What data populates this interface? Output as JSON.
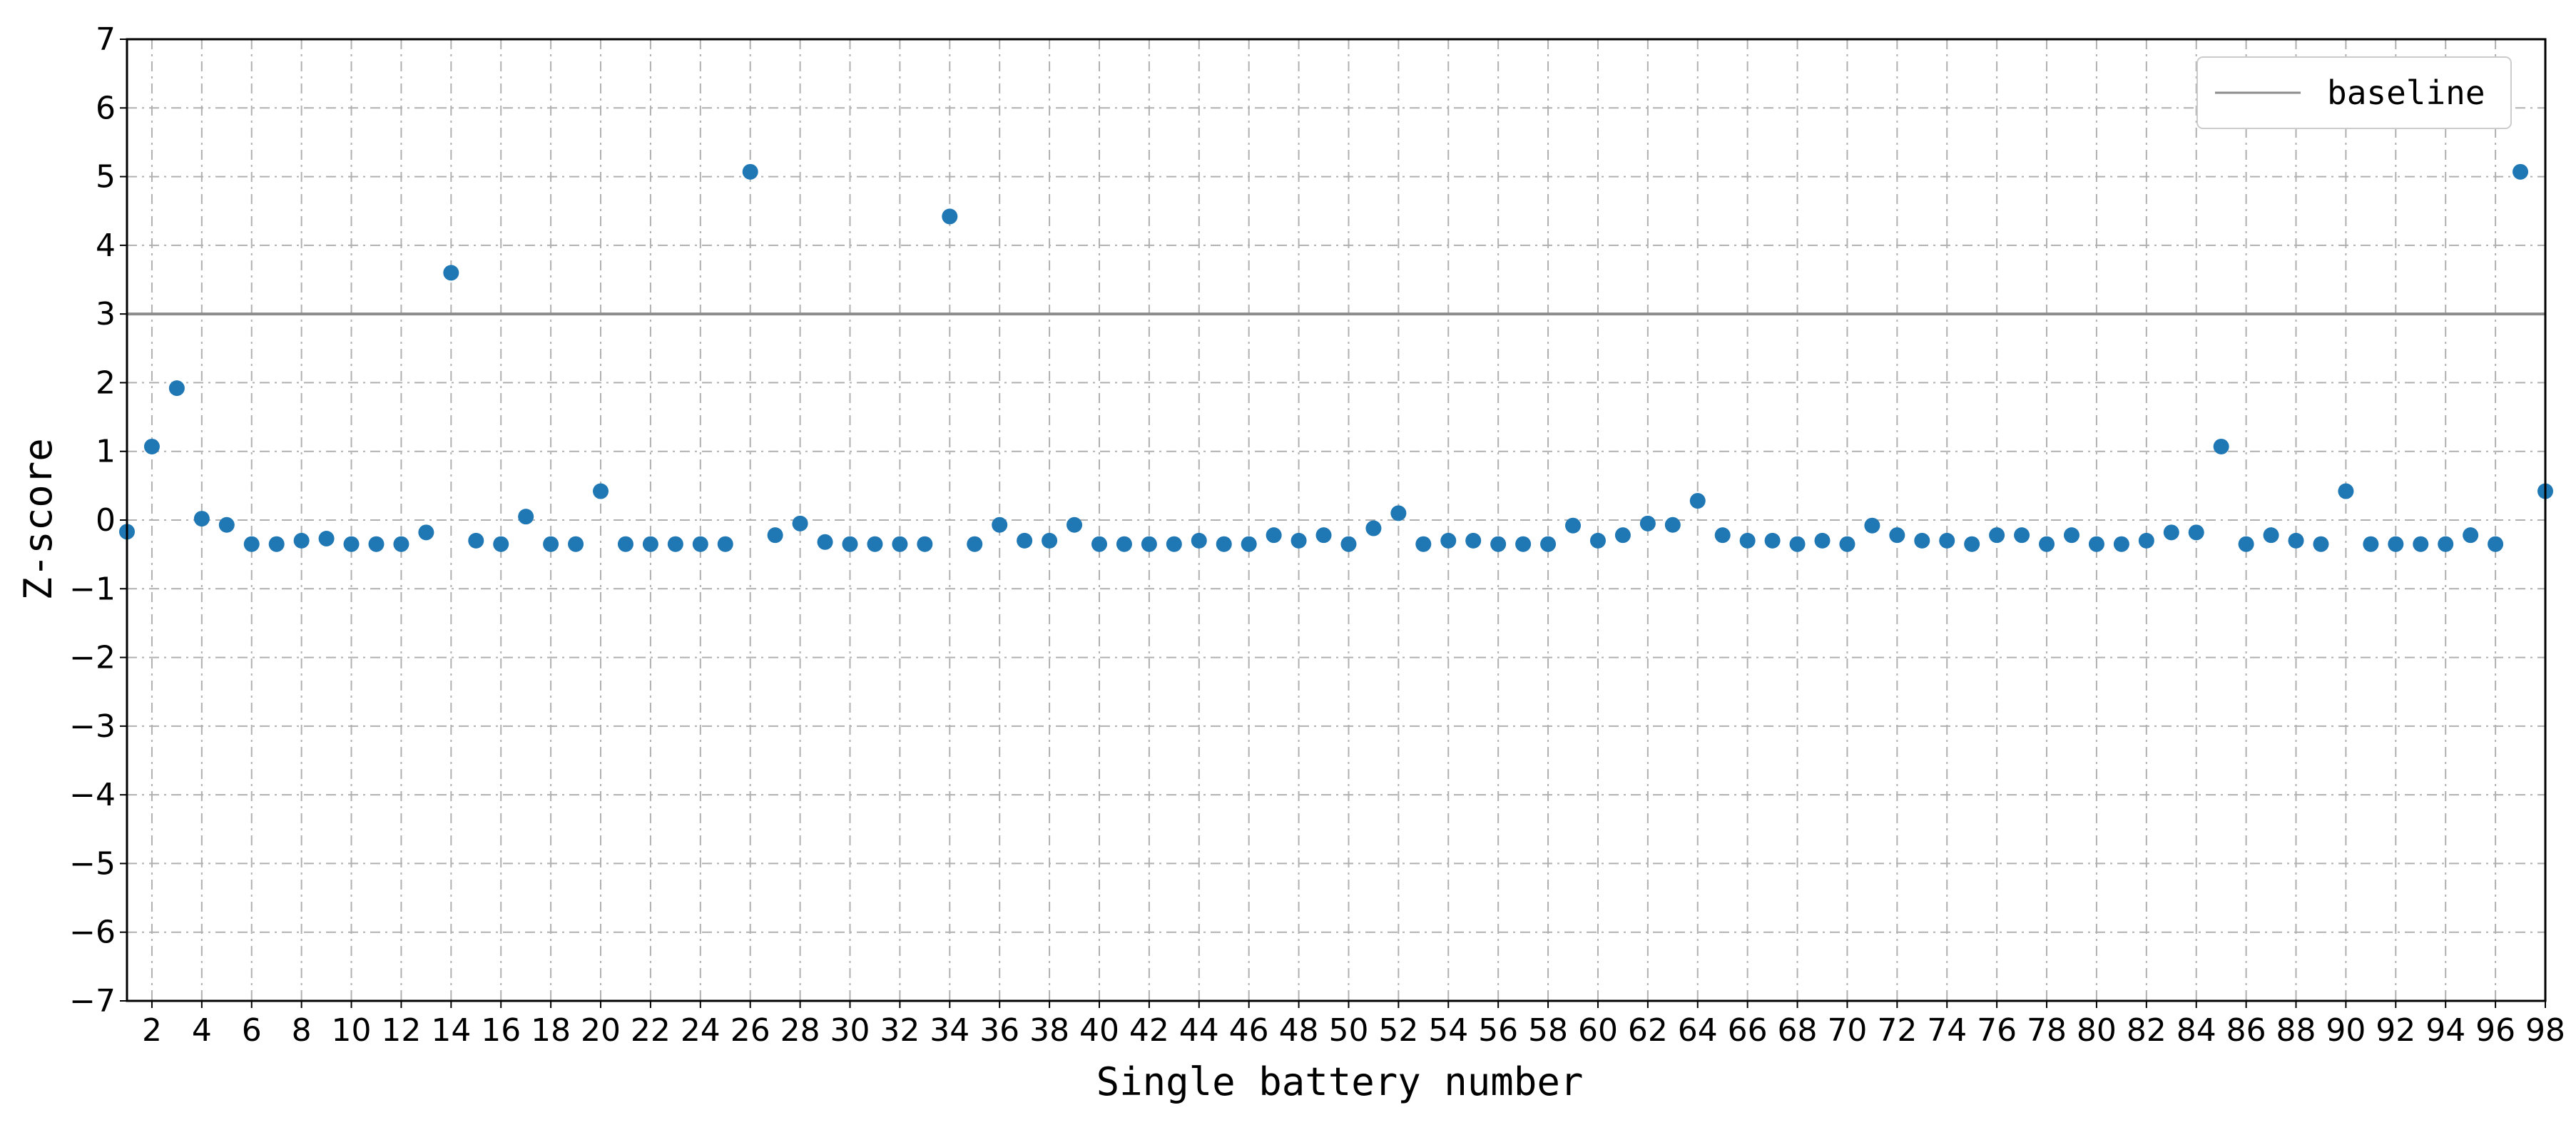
{
  "chart_data": {
    "type": "scatter",
    "title": "",
    "xlabel": "Single battery number",
    "ylabel": "Z-score",
    "xlim": [
      1,
      98
    ],
    "ylim": [
      -7,
      7
    ],
    "grid": true,
    "grid_style": "dashed",
    "legend_position": "top-right",
    "x_ticks": [
      2,
      4,
      6,
      8,
      10,
      12,
      14,
      16,
      18,
      20,
      22,
      24,
      26,
      28,
      30,
      32,
      34,
      36,
      38,
      40,
      42,
      44,
      46,
      48,
      50,
      52,
      54,
      56,
      58,
      60,
      62,
      64,
      66,
      68,
      70,
      72,
      74,
      76,
      78,
      80,
      82,
      84,
      86,
      88,
      90,
      92,
      94,
      96,
      98
    ],
    "y_ticks": [
      -7,
      -6,
      -5,
      -4,
      -3,
      -2,
      -1,
      0,
      1,
      2,
      3,
      4,
      5,
      6,
      7
    ],
    "y_tick_labels": [
      "−7",
      "−6",
      "−5",
      "−4",
      "−3",
      "−2",
      "−1",
      "0",
      "1",
      "2",
      "3",
      "4",
      "5",
      "6",
      "7"
    ],
    "baseline": {
      "name": "baseline",
      "y": 3,
      "color": "#8c8c8c"
    },
    "series": [
      {
        "color": "#1f77b4",
        "x": [
          1,
          2,
          3,
          4,
          5,
          6,
          7,
          8,
          9,
          10,
          11,
          12,
          13,
          14,
          15,
          16,
          17,
          18,
          19,
          20,
          21,
          22,
          23,
          24,
          25,
          26,
          27,
          28,
          29,
          30,
          31,
          32,
          33,
          34,
          35,
          36,
          37,
          38,
          39,
          40,
          41,
          42,
          43,
          44,
          45,
          46,
          47,
          48,
          49,
          50,
          51,
          52,
          53,
          54,
          55,
          56,
          57,
          58,
          59,
          60,
          61,
          62,
          63,
          64,
          65,
          66,
          67,
          68,
          69,
          70,
          71,
          72,
          73,
          74,
          75,
          76,
          77,
          78,
          79,
          80,
          81,
          82,
          83,
          84,
          85,
          86,
          87,
          88,
          89,
          90,
          91,
          92,
          93,
          94,
          95,
          96,
          97,
          98
        ],
        "y": [
          -0.17,
          1.07,
          1.92,
          0.02,
          -0.07,
          -0.35,
          -0.35,
          -0.3,
          -0.27,
          -0.35,
          -0.35,
          -0.35,
          -0.18,
          3.6,
          -0.3,
          -0.35,
          0.05,
          -0.35,
          -0.35,
          0.42,
          -0.35,
          -0.35,
          -0.35,
          -0.35,
          -0.35,
          5.07,
          -0.22,
          -0.05,
          -0.32,
          -0.35,
          -0.35,
          -0.35,
          -0.35,
          4.42,
          -0.35,
          -0.07,
          -0.3,
          -0.3,
          -0.07,
          -0.35,
          -0.35,
          -0.35,
          -0.35,
          -0.3,
          -0.35,
          -0.35,
          -0.22,
          -0.3,
          -0.22,
          -0.35,
          -0.12,
          0.1,
          -0.35,
          -0.3,
          -0.3,
          -0.35,
          -0.35,
          -0.35,
          -0.08,
          -0.3,
          -0.22,
          -0.05,
          -0.07,
          0.28,
          -0.22,
          -0.3,
          -0.3,
          -0.35,
          -0.3,
          -0.35,
          -0.08,
          -0.22,
          -0.3,
          -0.3,
          -0.35,
          -0.22,
          -0.22,
          -0.35,
          -0.22,
          -0.35,
          -0.35,
          -0.3,
          -0.18,
          -0.18,
          1.07,
          -0.35,
          -0.22,
          -0.3,
          -0.35,
          0.42,
          -0.35,
          -0.35,
          -0.35,
          -0.35,
          -0.22,
          -0.35,
          5.07,
          0.42
        ]
      }
    ]
  }
}
